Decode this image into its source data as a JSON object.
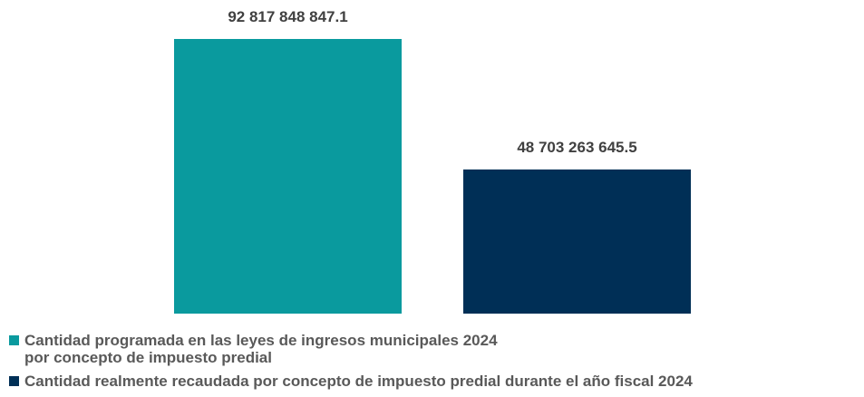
{
  "chart_data": {
    "type": "bar",
    "categories": [
      null
    ],
    "series": [
      {
        "name": "Cantidad programada en las leyes de ingresos municipales 2024\npor concepto de impuesto predial",
        "color": "#0a9a9e",
        "values": [
          92817848847.1
        ],
        "value_labels": [
          "92 817 848 847.1"
        ]
      },
      {
        "name": "Cantidad realmente recaudada por concepto de impuesto predial durante el año fiscal 2024",
        "color": "#002f56",
        "values": [
          48703263645.5
        ],
        "value_labels": [
          "48 703 263 645.5"
        ]
      }
    ],
    "legend": "bottom-left"
  }
}
